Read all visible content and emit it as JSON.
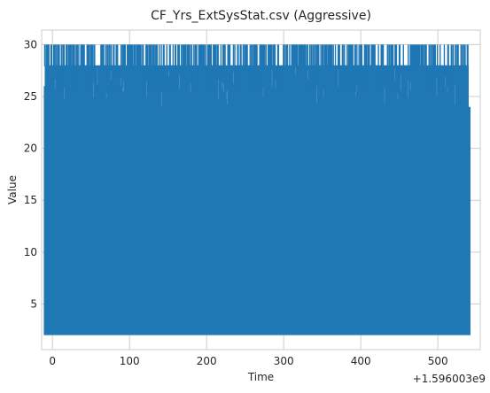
{
  "chart_data": {
    "type": "line",
    "title": "CF_Yrs_ExtSysStat.csv (Aggressive)",
    "xlabel": "Time",
    "ylabel": "Value",
    "x_offset_label": "+1.596003e9",
    "xlim": [
      -14,
      555
    ],
    "ylim": [
      0.6,
      31.4
    ],
    "x_ticks": [
      0,
      100,
      200,
      300,
      400,
      500
    ],
    "y_ticks": [
      5,
      10,
      15,
      20,
      25,
      30
    ],
    "grid": true,
    "series": [
      {
        "color": "#1f77b4",
        "x_range": [
          -10,
          540
        ],
        "value_range": [
          2,
          30
        ],
        "frequent_peak": 28,
        "occasional_peak": 30,
        "end_value": 24
      }
    ],
    "colors": {
      "line": "#1f77b4",
      "grid": "#cccccc",
      "text": "#262626",
      "background": "#ffffff"
    }
  }
}
